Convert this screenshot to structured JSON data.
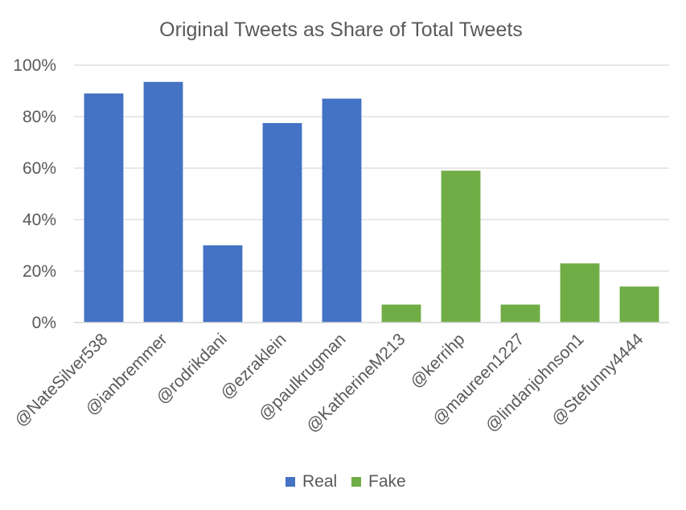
{
  "chart_data": {
    "type": "bar",
    "title": "Original Tweets as Share of Total Tweets",
    "xlabel": "",
    "ylabel": "",
    "categories": [
      "@NateSilver538",
      "@ianbremmer",
      "@rodrikdani",
      "@ezraklein",
      "@paulkrugman",
      "@KatherineM213",
      "@kerrihp",
      "@maureen1227",
      "@lindanjohnson1",
      "@Stefunny4444"
    ],
    "series": [
      {
        "name": "Real",
        "color": "#4472C4",
        "values": [
          0.89,
          0.935,
          0.3,
          0.775,
          0.87,
          null,
          null,
          null,
          null,
          null
        ]
      },
      {
        "name": "Fake",
        "color": "#70AD47",
        "values": [
          null,
          null,
          null,
          null,
          null,
          0.07,
          0.59,
          0.07,
          0.23,
          0.14
        ]
      }
    ],
    "ylim": [
      0,
      1
    ],
    "yticks": [
      0,
      0.2,
      0.4,
      0.6,
      0.8,
      1.0
    ],
    "ytick_labels": [
      "0%",
      "20%",
      "40%",
      "60%",
      "80%",
      "100%"
    ],
    "grid": true,
    "legend_position": "bottom"
  }
}
